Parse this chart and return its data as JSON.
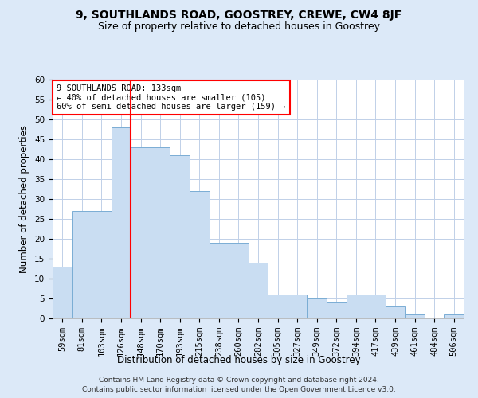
{
  "title": "9, SOUTHLANDS ROAD, GOOSTREY, CREWE, CW4 8JF",
  "subtitle": "Size of property relative to detached houses in Goostrey",
  "xlabel": "Distribution of detached houses by size in Goostrey",
  "ylabel": "Number of detached properties",
  "bar_color": "#c9ddf2",
  "bar_edge_color": "#7aadd4",
  "categories": [
    "59sqm",
    "81sqm",
    "103sqm",
    "126sqm",
    "148sqm",
    "170sqm",
    "193sqm",
    "215sqm",
    "238sqm",
    "260sqm",
    "282sqm",
    "305sqm",
    "327sqm",
    "349sqm",
    "372sqm",
    "394sqm",
    "417sqm",
    "439sqm",
    "461sqm",
    "484sqm",
    "506sqm"
  ],
  "values": [
    13,
    27,
    27,
    48,
    43,
    43,
    41,
    32,
    19,
    19,
    14,
    6,
    6,
    5,
    4,
    6,
    6,
    3,
    1,
    0,
    1
  ],
  "ylim": [
    0,
    60
  ],
  "yticks": [
    0,
    5,
    10,
    15,
    20,
    25,
    30,
    35,
    40,
    45,
    50,
    55,
    60
  ],
  "vline_x": 3.5,
  "annotation_text": "9 SOUTHLANDS ROAD: 133sqm\n← 40% of detached houses are smaller (105)\n60% of semi-detached houses are larger (159) →",
  "annotation_box_color": "white",
  "annotation_box_edge_color": "red",
  "vline_color": "red",
  "footer_line1": "Contains HM Land Registry data © Crown copyright and database right 2024.",
  "footer_line2": "Contains public sector information licensed under the Open Government Licence v3.0.",
  "bg_color": "#dce9f8",
  "plot_bg_color": "white",
  "title_fontsize": 10,
  "subtitle_fontsize": 9,
  "axis_label_fontsize": 8.5,
  "tick_fontsize": 7.5,
  "annotation_fontsize": 7.5,
  "footer_fontsize": 6.5
}
